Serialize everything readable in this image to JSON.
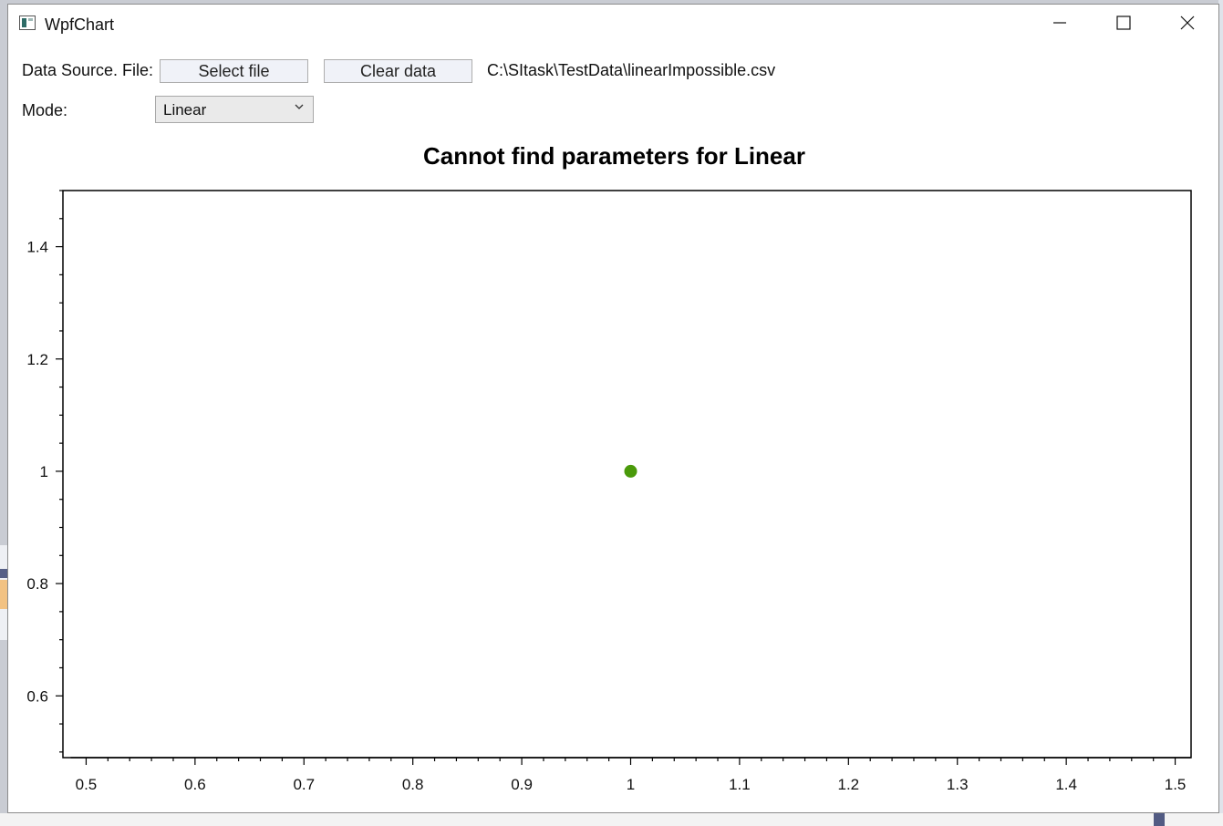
{
  "window": {
    "title": "WpfChart",
    "icon": "app-window-icon"
  },
  "controls": {
    "data_source_label": "Data Source. File:",
    "select_file_label": "Select file",
    "clear_data_label": "Clear data",
    "file_path": "C:\\SItask\\TestData\\linearImpossible.csv",
    "mode_label": "Mode:",
    "mode_value": "Linear"
  },
  "colors": {
    "point": "#4a9a0a",
    "axis": "#000000"
  },
  "chart_data": {
    "type": "scatter",
    "title": "Cannot find parameters for Linear",
    "xlabel": "",
    "ylabel": "",
    "xlim": [
      0.49,
      1.51
    ],
    "ylim": [
      0.49,
      1.5
    ],
    "xticks": [
      "0.5",
      "0.6",
      "0.7",
      "0.8",
      "0.9",
      "1",
      "1.1",
      "1.2",
      "1.3",
      "1.4",
      "1.5"
    ],
    "yticks": [
      "0.6",
      "0.8",
      "1",
      "1.2",
      "1.4"
    ],
    "series": [
      {
        "x": [
          1
        ],
        "y": [
          1
        ]
      }
    ],
    "grid": false
  }
}
